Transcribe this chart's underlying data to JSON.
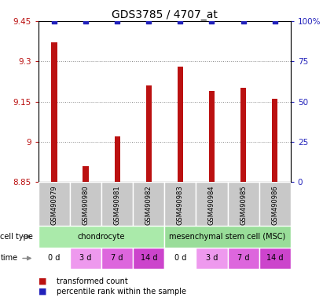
{
  "title": "GDS3785 / 4707_at",
  "samples": [
    "GSM490979",
    "GSM490980",
    "GSM490981",
    "GSM490982",
    "GSM490983",
    "GSM490984",
    "GSM490985",
    "GSM490986"
  ],
  "bar_values": [
    9.37,
    8.91,
    9.02,
    9.21,
    9.28,
    9.19,
    9.2,
    9.16
  ],
  "percentile_values": [
    100,
    100,
    100,
    100,
    100,
    100,
    100,
    100
  ],
  "ylim_left": [
    8.85,
    9.45
  ],
  "ylim_right": [
    0,
    100
  ],
  "yticks_left": [
    8.85,
    9.0,
    9.15,
    9.3,
    9.45
  ],
  "ytick_labels_left": [
    "8.85",
    "9",
    "9.15",
    "9.3",
    "9.45"
  ],
  "yticks_right": [
    0,
    25,
    50,
    75,
    100
  ],
  "ytick_labels_right": [
    "0",
    "25",
    "50",
    "75",
    "100%"
  ],
  "bar_color": "#bb1111",
  "percentile_color": "#2222bb",
  "cell_types": [
    {
      "label": "chondrocyte",
      "start": 0,
      "end": 4,
      "color": "#aaeaaa"
    },
    {
      "label": "mesenchymal stem cell (MSC)",
      "start": 4,
      "end": 8,
      "color": "#99dd99"
    }
  ],
  "time_labels": [
    "0 d",
    "3 d",
    "7 d",
    "14 d",
    "0 d",
    "3 d",
    "7 d",
    "14 d"
  ],
  "time_colors": [
    "#ffffff",
    "#ee99ee",
    "#dd66dd",
    "#cc44cc",
    "#ffffff",
    "#ee99ee",
    "#dd66dd",
    "#cc44cc"
  ],
  "sample_bg_color": "#c8c8c8",
  "grid_color": "#888888",
  "title_fontsize": 10,
  "bar_width": 0.18,
  "cell_type_label": "cell type",
  "time_label": "time",
  "legend_red": "transformed count",
  "legend_blue": "percentile rank within the sample"
}
